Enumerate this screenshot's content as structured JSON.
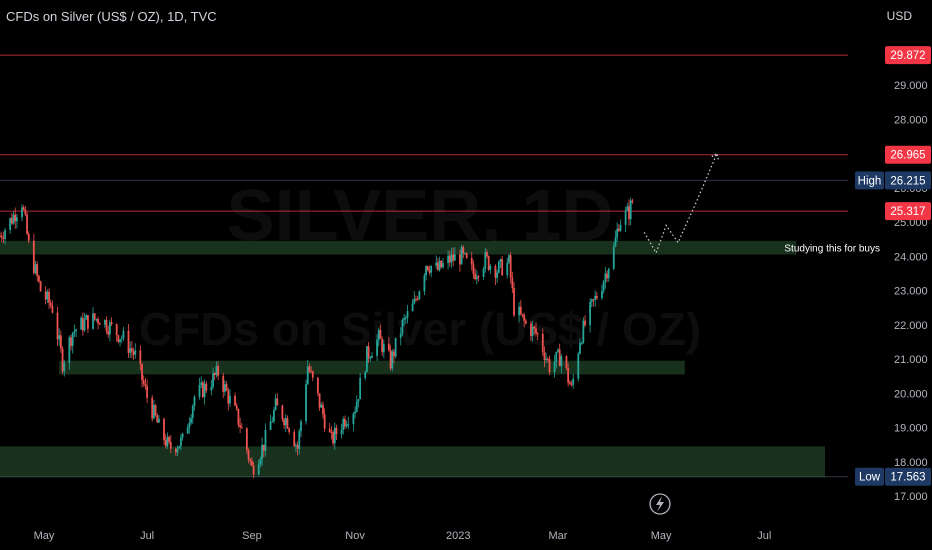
{
  "header": {
    "title": "CFDs on Silver (US$ / OZ), 1D, TVC",
    "currency": "USD"
  },
  "watermark": {
    "line1": "SILVER, 1D",
    "line2": "CFDs on Silver (US$ / OZ)"
  },
  "colors": {
    "up": "#26a69a",
    "down": "#ef5350",
    "zone": "#1c3a22",
    "tag_red": "#f23645",
    "tag_navy": "#1e3a64"
  },
  "icons": {
    "flash": "lightning-icon"
  },
  "chart_data": {
    "type": "candlestick",
    "x_range": [
      "2022-04-05",
      "2023-07-31"
    ],
    "y_range": [
      17.0,
      30.3
    ],
    "y_ticks": [
      "17.000",
      "18.000",
      "19.000",
      "20.000",
      "21.000",
      "22.000",
      "23.000",
      "24.000",
      "25.000",
      "26.000",
      "27.000",
      "28.000",
      "29.000"
    ],
    "x_ticks": [
      {
        "date": "2022-05-01",
        "label": "May"
      },
      {
        "date": "2022-07-01",
        "label": "Jul"
      },
      {
        "date": "2022-09-01",
        "label": "Sep"
      },
      {
        "date": "2022-11-01",
        "label": "Nov"
      },
      {
        "date": "2023-01-01",
        "label": "2023"
      },
      {
        "date": "2023-03-01",
        "label": "Mar"
      },
      {
        "date": "2023-05-01",
        "label": "May"
      },
      {
        "date": "2023-07-01",
        "label": "Jul"
      }
    ],
    "price_path": [
      [
        "2022-04-05",
        24.6
      ],
      [
        "2022-04-12",
        25.1
      ],
      [
        "2022-04-18",
        25.6
      ],
      [
        "2022-04-22",
        24.3
      ],
      [
        "2022-04-29",
        23.0
      ],
      [
        "2022-05-06",
        22.5
      ],
      [
        "2022-05-12",
        20.9
      ],
      [
        "2022-05-18",
        21.8
      ],
      [
        "2022-05-26",
        22.1
      ],
      [
        "2022-06-03",
        22.2
      ],
      [
        "2022-06-10",
        21.9
      ],
      [
        "2022-06-17",
        21.6
      ],
      [
        "2022-06-24",
        21.1
      ],
      [
        "2022-07-01",
        19.9
      ],
      [
        "2022-07-08",
        19.0
      ],
      [
        "2022-07-14",
        18.4
      ],
      [
        "2022-07-22",
        18.6
      ],
      [
        "2022-07-29",
        19.9
      ],
      [
        "2022-08-05",
        20.2
      ],
      [
        "2022-08-12",
        20.6
      ],
      [
        "2022-08-18",
        19.9
      ],
      [
        "2022-08-25",
        19.1
      ],
      [
        "2022-09-01",
        17.8
      ],
      [
        "2022-09-08",
        18.5
      ],
      [
        "2022-09-15",
        19.6
      ],
      [
        "2022-09-22",
        19.2
      ],
      [
        "2022-09-28",
        18.4
      ],
      [
        "2022-10-04",
        20.8
      ],
      [
        "2022-10-11",
        19.7
      ],
      [
        "2022-10-18",
        18.6
      ],
      [
        "2022-10-25",
        19.2
      ],
      [
        "2022-11-01",
        19.6
      ],
      [
        "2022-11-08",
        21.1
      ],
      [
        "2022-11-15",
        21.6
      ],
      [
        "2022-11-22",
        20.9
      ],
      [
        "2022-11-29",
        22.0
      ],
      [
        "2022-12-06",
        22.6
      ],
      [
        "2022-12-13",
        23.8
      ],
      [
        "2022-12-20",
        23.6
      ],
      [
        "2022-12-27",
        23.9
      ],
      [
        "2023-01-03",
        24.0
      ],
      [
        "2023-01-10",
        23.5
      ],
      [
        "2023-01-17",
        23.9
      ],
      [
        "2023-01-24",
        23.6
      ],
      [
        "2023-01-31",
        23.8
      ],
      [
        "2023-02-03",
        22.5
      ],
      [
        "2023-02-10",
        22.0
      ],
      [
        "2023-02-17",
        21.7
      ],
      [
        "2023-02-24",
        20.8
      ],
      [
        "2023-03-03",
        21.1
      ],
      [
        "2023-03-09",
        20.1
      ],
      [
        "2023-03-14",
        21.6
      ],
      [
        "2023-03-20",
        22.4
      ],
      [
        "2023-03-27",
        23.2
      ],
      [
        "2023-04-03",
        24.2
      ],
      [
        "2023-04-06",
        25.0
      ],
      [
        "2023-04-12",
        25.3
      ],
      [
        "2023-04-14",
        25.6
      ]
    ],
    "levels": [
      {
        "value": 29.872,
        "label": "29.872",
        "color": "red"
      },
      {
        "value": 26.965,
        "label": "26.965",
        "color": "red"
      },
      {
        "value": 26.215,
        "label": "26.215",
        "tag": "High",
        "color": "navy"
      },
      {
        "value": 25.317,
        "label": "25.317",
        "color": "red"
      },
      {
        "value": 17.563,
        "label": "17.563",
        "tag": "Low",
        "color": "navy"
      }
    ],
    "zones": [
      {
        "from": "2022-04-05",
        "to": "2023-07-20",
        "low": 24.05,
        "high": 24.45,
        "label": "Studying this for buys"
      },
      {
        "from": "2022-05-10",
        "to": "2023-05-15",
        "low": 20.55,
        "high": 20.95
      },
      {
        "from": "2022-03-31",
        "to": "2023-08-08",
        "low": 17.55,
        "high": 18.45
      }
    ],
    "projection": [
      [
        "2023-04-21",
        24.7
      ],
      [
        "2023-04-28",
        24.1
      ],
      [
        "2023-05-04",
        24.9
      ],
      [
        "2023-05-11",
        24.4
      ],
      [
        "2023-05-22",
        25.6
      ],
      [
        "2023-06-03",
        27.0
      ]
    ]
  }
}
